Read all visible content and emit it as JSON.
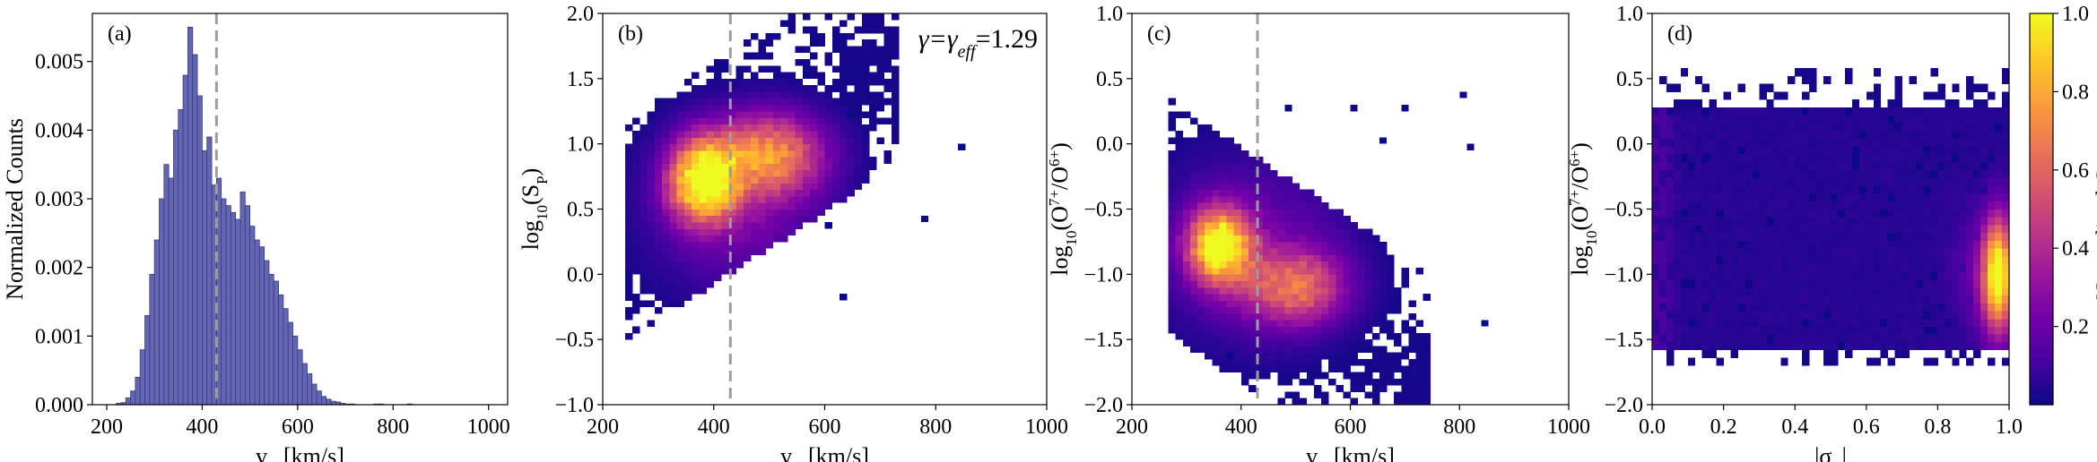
{
  "figure": {
    "colormap_stops": [
      "#0d0887",
      "#46039f",
      "#7201a8",
      "#9c179e",
      "#bd3786",
      "#d8576b",
      "#ed7953",
      "#fb9f3a",
      "#fdca26",
      "#f0f921"
    ],
    "hist_fill": "#6366b5",
    "hist_edge": "#3a3a78",
    "guide_color": "#9e9e9e"
  },
  "chart_data": [
    {
      "id": "a",
      "type": "bar",
      "panel_label": "(a)",
      "xlabel_main": "v",
      "xlabel_sub": "R",
      "xlabel_unit": " [km/s]",
      "ylabel": "Normalized Counts",
      "xlim": [
        170,
        1040
      ],
      "ylim": [
        0,
        0.0057
      ],
      "xticks": [
        200,
        400,
        600,
        800,
        1000
      ],
      "yticks": [
        0.0,
        0.001,
        0.002,
        0.003,
        0.004,
        0.005
      ],
      "ytick_labels": [
        "0.000",
        "0.001",
        "0.002",
        "0.003",
        "0.004",
        "0.005"
      ],
      "vline_x": 430,
      "bins_start": 220,
      "bin_width": 10,
      "values": [
        2e-05,
        3e-05,
        0.0001,
        0.0002,
        0.0004,
        0.0008,
        0.0013,
        0.0019,
        0.0024,
        0.003,
        0.0035,
        0.0033,
        0.004,
        0.0043,
        0.0048,
        0.0055,
        0.0051,
        0.0045,
        0.0037,
        0.0039,
        0.0032,
        0.0033,
        0.003,
        0.0029,
        0.0028,
        0.0027,
        0.0031,
        0.0029,
        0.0026,
        0.0024,
        0.0023,
        0.0021,
        0.0019,
        0.0018,
        0.0016,
        0.0014,
        0.0012,
        0.001,
        0.0008,
        0.0006,
        0.00045,
        0.0003,
        0.0002,
        0.00012,
        8e-05,
        5e-05,
        4e-05,
        2e-05,
        1e-05,
        1e-05,
        0.0,
        0.0,
        0.0,
        0.0,
        1e-05,
        1e-05,
        0.0,
        0.0,
        0.0,
        0.0,
        0.0,
        1e-05
      ]
    },
    {
      "id": "b",
      "type": "heatmap",
      "panel_label": "(b)",
      "annotation": "γ=γeff=1.29",
      "annotation_parts": [
        "γ=γ",
        "eff",
        "=1.29"
      ],
      "xlabel_main": "v",
      "xlabel_sub": "R",
      "xlabel_unit": " [km/s]",
      "ylabel_main": "log",
      "ylabel_sub": "10",
      "ylabel_rest": "(S",
      "ylabel_sub2": "P",
      "ylabel_end": ")",
      "xlim": [
        200,
        1000
      ],
      "ylim": [
        -1.0,
        2.0
      ],
      "xticks": [
        200,
        400,
        600,
        800,
        1000
      ],
      "yticks": [
        -1.0,
        -0.5,
        0.0,
        0.5,
        1.0,
        1.5,
        2.0
      ],
      "ytick_labels": [
        "−1.0",
        "−0.5",
        "0.0",
        "0.5",
        "1.0",
        "1.5",
        "2.0"
      ],
      "vline_x": 430,
      "grid_bins": [
        60,
        60
      ],
      "density_model": {
        "cores": [
          {
            "x": 380,
            "y": 0.72,
            "sx": 42,
            "sy": 0.22,
            "w": 1.0
          },
          {
            "x": 500,
            "y": 0.92,
            "sx": 70,
            "sy": 0.22,
            "w": 0.65
          },
          {
            "x": 440,
            "y": 0.5,
            "sx": 110,
            "sy": 0.45,
            "w": 0.22
          }
        ],
        "envelope": {
          "x_min": 235,
          "x_max": 730,
          "slope": 0.0028,
          "intercept": -0.35,
          "half_width": 0.85
        },
        "sparse_points": [
          [
            650,
            1.2
          ],
          [
            700,
            1.4
          ],
          [
            840,
            0.95
          ],
          [
            780,
            0.45
          ],
          [
            630,
            -0.2
          ],
          [
            610,
            0.35
          ],
          [
            580,
            1.75
          ],
          [
            560,
            1.55
          ],
          [
            720,
            1.15
          ]
        ]
      },
      "colorbar": false
    },
    {
      "id": "c",
      "type": "heatmap",
      "panel_label": "(c)",
      "xlabel_main": "v",
      "xlabel_sub": "R",
      "xlabel_unit": " [km/s]",
      "ylabel_main": "log",
      "ylabel_sub": "10",
      "ylabel_rest": "(O",
      "ylabel_sup": "7+",
      "ylabel_mid": "/O",
      "ylabel_sup2": "6+",
      "ylabel_end": ")",
      "xlim": [
        200,
        1000
      ],
      "ylim": [
        -2.0,
        1.0
      ],
      "xticks": [
        200,
        400,
        600,
        800,
        1000
      ],
      "yticks": [
        -2.0,
        -1.5,
        -1.0,
        -0.5,
        0.0,
        0.5,
        1.0
      ],
      "ytick_labels": [
        "−2.0",
        "−1.5",
        "−1.0",
        "−0.5",
        "0.0",
        "0.5",
        "1.0"
      ],
      "vline_x": 430,
      "grid_bins": [
        60,
        60
      ],
      "density_model": {
        "cores": [
          {
            "x": 360,
            "y": -0.78,
            "sx": 40,
            "sy": 0.2,
            "w": 1.0
          },
          {
            "x": 500,
            "y": -1.1,
            "sx": 65,
            "sy": 0.2,
            "w": 0.55
          },
          {
            "x": 420,
            "y": -0.8,
            "sx": 120,
            "sy": 0.5,
            "w": 0.2
          }
        ],
        "envelope": {
          "x_min": 270,
          "x_max": 750,
          "slope": -0.0028,
          "intercept": 0.2,
          "half_width": 0.9
        },
        "sparse_points": [
          [
            800,
            0.4
          ],
          [
            820,
            -0.05
          ],
          [
            840,
            -1.38
          ],
          [
            700,
            0.25
          ],
          [
            660,
            0.05
          ],
          [
            600,
            0.3
          ],
          [
            740,
            -1.55
          ],
          [
            380,
            -1.65
          ],
          [
            480,
            0.25
          ]
        ]
      },
      "colorbar": false
    },
    {
      "id": "d",
      "type": "heatmap",
      "panel_label": "(d)",
      "xlabel_main": "|σ",
      "xlabel_sub": "C",
      "xlabel_end": "|",
      "ylabel_main": "log",
      "ylabel_sub": "10",
      "ylabel_rest": "(O",
      "ylabel_sup": "7+",
      "ylabel_mid": "/O",
      "ylabel_sup2": "6+",
      "ylabel_end": ")",
      "xlim": [
        0.0,
        1.0
      ],
      "ylim": [
        -2.0,
        1.0
      ],
      "xticks": [
        0.0,
        0.2,
        0.4,
        0.6,
        0.8,
        1.0
      ],
      "xtick_labels": [
        "0.0",
        "0.2",
        "0.4",
        "0.6",
        "0.8",
        "1.0"
      ],
      "yticks": [
        -2.0,
        -1.5,
        -1.0,
        -0.5,
        0.0,
        0.5,
        1.0
      ],
      "ytick_labels": [
        "−2.0",
        "−1.5",
        "−1.0",
        "−0.5",
        "0.0",
        "0.5",
        "1.0"
      ],
      "grid_bins": [
        50,
        50
      ],
      "density_model": {
        "band_y": [
          -1.6,
          0.25
        ],
        "hot_x": 0.97,
        "hot_y": -1.0,
        "hot_sy": 0.3
      },
      "colorbar": true,
      "colorbar_label": "Normalized Counts",
      "colorbar_ticks": [
        0.2,
        0.4,
        0.6,
        0.8,
        1.0
      ],
      "colorbar_tick_labels": [
        "0.2",
        "0.4",
        "0.6",
        "0.8",
        "1.0"
      ]
    }
  ]
}
